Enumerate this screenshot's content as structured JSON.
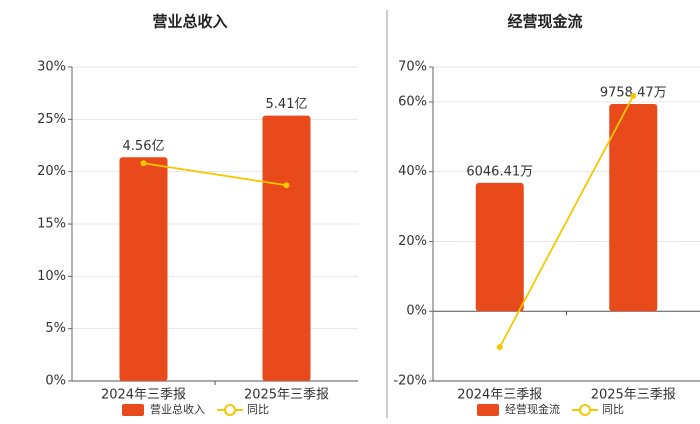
{
  "chart_data": [
    {
      "type": "bar",
      "title": "营业总收入",
      "categories": [
        "2024年三季报",
        "2025年三季报"
      ],
      "series": [
        {
          "name": "营业总收入",
          "type": "bar",
          "axis": "y2",
          "color": "#e84a1c",
          "values": [
            4.56,
            5.41
          ],
          "value_labels": [
            "4.56亿",
            "5.41亿"
          ]
        },
        {
          "name": "同比",
          "type": "line",
          "color": "#f5c800",
          "values": [
            20.8,
            18.7
          ]
        }
      ],
      "ylim": [
        0,
        30
      ],
      "yticks": [
        {
          "value": 0,
          "label": "0%"
        },
        {
          "value": 5,
          "label": "5%"
        },
        {
          "value": 10,
          "label": "10%"
        },
        {
          "value": 15,
          "label": "15%"
        },
        {
          "value": 20,
          "label": "20%"
        },
        {
          "value": 25,
          "label": "25%"
        },
        {
          "value": 30,
          "label": "30%"
        }
      ],
      "y2lim": [
        0,
        6.4
      ],
      "grid": true
    },
    {
      "type": "bar",
      "title": "经营现金流",
      "categories": [
        "2024年三季报",
        "2025年三季报"
      ],
      "series": [
        {
          "name": "经营现金流",
          "type": "bar",
          "axis": "y2",
          "color": "#e84a1c",
          "values": [
            6046.41,
            9758.47
          ],
          "value_labels": [
            "6046.41万",
            "9758.47万"
          ]
        },
        {
          "name": "同比",
          "type": "line",
          "color": "#f5c800",
          "values": [
            -10.3,
            61.7
          ]
        }
      ],
      "ylim": [
        -20,
        70
      ],
      "yticks": [
        {
          "value": -20,
          "label": "-20%"
        },
        {
          "value": 0,
          "label": "0%"
        },
        {
          "value": 20,
          "label": "20%"
        },
        {
          "value": 40,
          "label": "40%"
        },
        {
          "value": 60,
          "label": "60%"
        },
        {
          "value": 70,
          "label": "70%"
        }
      ],
      "y2lim": [
        -3286,
        11500
      ],
      "grid": true
    }
  ]
}
